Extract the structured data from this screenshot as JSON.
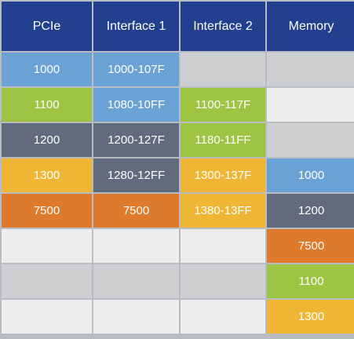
{
  "headers": [
    "PCIe",
    "Interface 1",
    "Interface 2",
    "Memory"
  ],
  "colors": {
    "header": "#23408f",
    "blue": "#6aa2d6",
    "green": "#9dc543",
    "slate": "#626b7d",
    "yellow": "#efb636",
    "orange": "#de7a2b",
    "gray": "#cdcfd1",
    "light": "#ededee"
  },
  "rows": [
    [
      {
        "text": "1000",
        "color": "blue"
      },
      {
        "text": "1000-107F",
        "color": "blue"
      },
      {
        "text": "",
        "color": "gray"
      },
      {
        "text": "",
        "color": "gray"
      }
    ],
    [
      {
        "text": "1100",
        "color": "green"
      },
      {
        "text": "1080-10FF",
        "color": "blue"
      },
      {
        "text": "1100-117F",
        "color": "green"
      },
      {
        "text": "",
        "color": "light"
      }
    ],
    [
      {
        "text": "1200",
        "color": "slate"
      },
      {
        "text": "1200-127F",
        "color": "slate"
      },
      {
        "text": "1180-11FF",
        "color": "green"
      },
      {
        "text": "",
        "color": "gray"
      }
    ],
    [
      {
        "text": "1300",
        "color": "yellow"
      },
      {
        "text": "1280-12FF",
        "color": "slate"
      },
      {
        "text": "1300-137F",
        "color": "yellow"
      },
      {
        "text": "1000",
        "color": "blue"
      }
    ],
    [
      {
        "text": "7500",
        "color": "orange"
      },
      {
        "text": "7500",
        "color": "orange"
      },
      {
        "text": "1380-13FF",
        "color": "yellow"
      },
      {
        "text": "1200",
        "color": "slate"
      }
    ],
    [
      {
        "text": "",
        "color": "light"
      },
      {
        "text": "",
        "color": "light"
      },
      {
        "text": "",
        "color": "light"
      },
      {
        "text": "7500",
        "color": "orange"
      }
    ],
    [
      {
        "text": "",
        "color": "gray"
      },
      {
        "text": "",
        "color": "gray"
      },
      {
        "text": "",
        "color": "gray"
      },
      {
        "text": "1100",
        "color": "green"
      }
    ],
    [
      {
        "text": "",
        "color": "light"
      },
      {
        "text": "",
        "color": "light"
      },
      {
        "text": "",
        "color": "light"
      },
      {
        "text": "1300",
        "color": "yellow"
      }
    ]
  ]
}
